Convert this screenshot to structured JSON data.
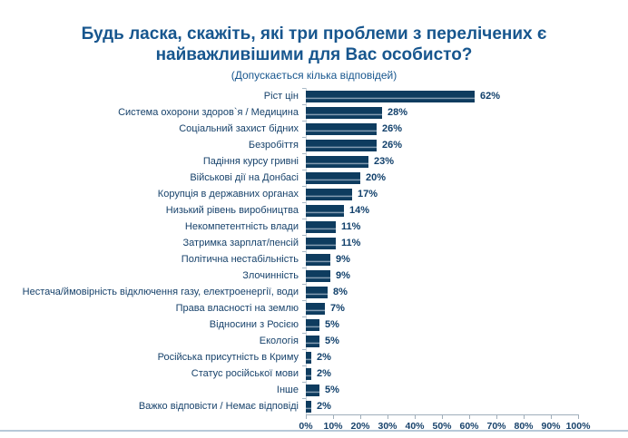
{
  "header": {
    "title": "Будь ласка, скажіть, які три проблеми з перелічених є\nнайважливішими для Вас особисто?",
    "subtitle": "(Допускається кілька відповідей)"
  },
  "chart_data": {
    "type": "bar",
    "orientation": "horizontal",
    "title": "Будь ласка, скажіть, які три проблеми з перелічених є найважливішими для Вас особисто?",
    "subtitle": "(Допускається кілька відповідей)",
    "categories": [
      "Ріст цін",
      "Система охорони здоров`я / Медицина",
      "Соціальний захист бідних",
      "Безробіття",
      "Падіння курсу гривні",
      "Військові дії на Донбасі",
      "Корупція в державних органах",
      "Низький рівень виробництва",
      "Некомпетентність влади",
      "Затримка зарплат/пенсій",
      "Політична нестабільність",
      "Злочинність",
      "Нестача/ймовірність відключення газу, електроенергії, води",
      "Права власності на землю",
      "Відносини з Росією",
      "Екологія",
      "Російська присутність в Криму",
      "Статус російської мови",
      "Інше",
      "Важко відповісти / Немає відповіді"
    ],
    "values": [
      62,
      28,
      26,
      26,
      23,
      20,
      17,
      14,
      11,
      11,
      9,
      9,
      8,
      7,
      5,
      5,
      2,
      2,
      5,
      2
    ],
    "value_suffix": "%",
    "xlim": [
      0,
      100
    ],
    "x_ticks": [
      "0%",
      "10%",
      "20%",
      "30%",
      "40%",
      "50%",
      "60%",
      "70%",
      "80%",
      "90%",
      "100%"
    ],
    "grid": false,
    "legend": false,
    "colors": {
      "bar": "#0E3C5F",
      "bar_stripe": "#8FA6BA",
      "title": "#17568E",
      "category_labels": "#17426B",
      "value_labels": "#11406B",
      "axis": "#A0AEBA",
      "divider": "#B7C9D8"
    }
  }
}
